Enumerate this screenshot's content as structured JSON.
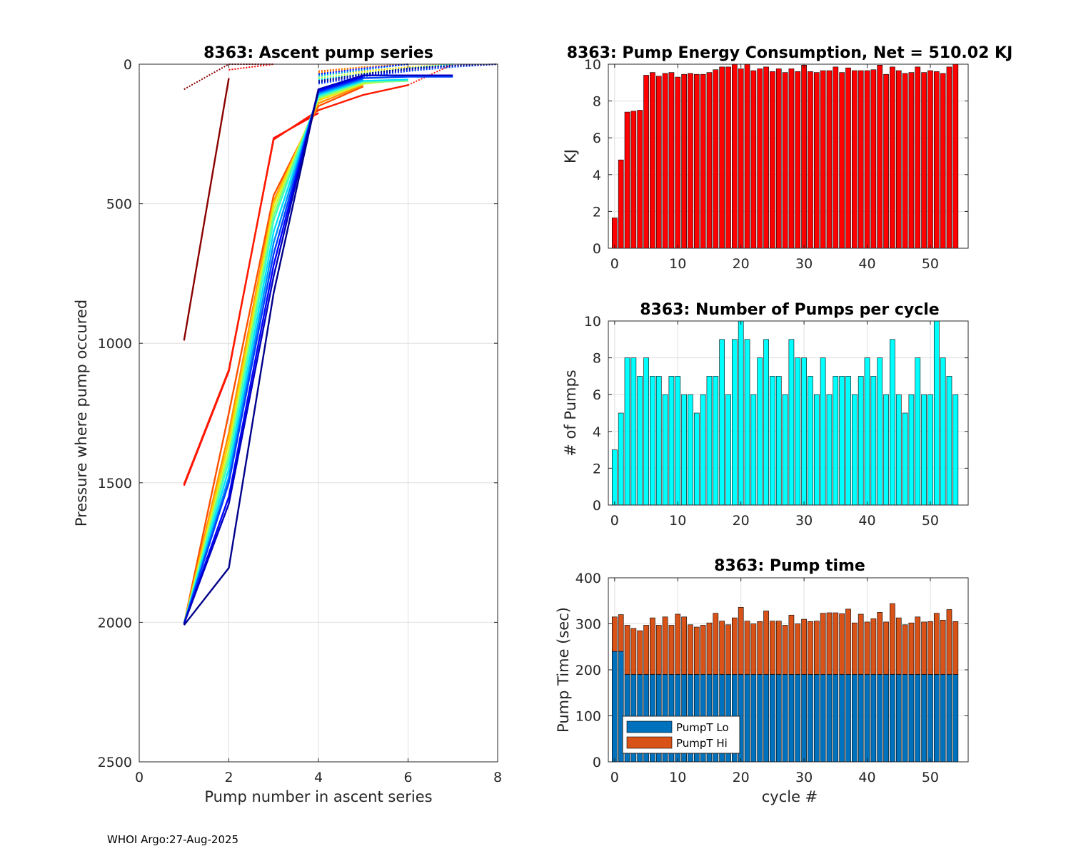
{
  "colors": {
    "energy": "#ff0000",
    "pumps": "#00ffff",
    "pumpT_lo": "#0072bd",
    "pumpT_hi": "#d95319"
  },
  "footer": "WHOI Argo:27-Aug-2025",
  "chart_data": [
    {
      "type": "line",
      "title": "8363: Ascent pump series",
      "xlabel": "Pump number in ascent series",
      "ylabel": "Pressure where pump occured",
      "xlim": [
        0,
        8
      ],
      "ylim": [
        0,
        2500
      ],
      "y_reversed": true,
      "xticks": [
        0,
        2,
        4,
        6,
        8
      ],
      "yticks": [
        0,
        500,
        1000,
        1500,
        2000,
        2500
      ],
      "xtick_labels": [
        "0",
        "2",
        "4",
        "6",
        "8"
      ],
      "ytick_labels": [
        "0",
        "500",
        "1000",
        "1500",
        "2000",
        "2500"
      ],
      "grid": true,
      "note": "one line per cycle, coloured by cycle (red = early, jet colormap, dark blue = late); solid = pumps at depth, dotted = near-surface pumps",
      "series": [
        {
          "cycle": 0,
          "color": "#8b0000",
          "solid": {
            "x": [
              1,
              2
            ],
            "y": [
              990,
              50
            ]
          },
          "dotted": {
            "x": [
              1,
              2,
              3
            ],
            "y": [
              90,
              0,
              0
            ]
          }
        },
        {
          "cycle": 1,
          "color": "#ff0000",
          "solid": {
            "x": [
              1,
              2,
              3,
              4
            ],
            "y": [
              1510,
              1100,
              265,
              175
            ]
          },
          "dotted": {
            "x": [
              2,
              3
            ],
            "y": [
              20,
              0
            ]
          }
        },
        {
          "cycle": 2,
          "color": "#ff1a00",
          "solid": {
            "x": [
              1,
              2,
              3,
              4,
              5,
              6
            ],
            "y": [
              1505,
              1095,
              270,
              165,
              110,
              75
            ]
          },
          "dotted": {
            "x": [
              6,
              7
            ],
            "y": [
              75,
              0
            ]
          }
        },
        {
          "cycle": 3,
          "color": "#ff5000",
          "solid": {
            "x": [
              1,
              2,
              3,
              4,
              5
            ],
            "y": [
              2005,
              1250,
              470,
              150,
              80
            ]
          },
          "dotted": {
            "x": [
              4,
              5,
              6
            ],
            "y": [
              25,
              10,
              0
            ]
          }
        },
        {
          "cycle": 6,
          "color": "#ff9000",
          "solid": {
            "x": [
              1,
              2,
              3,
              4,
              5
            ],
            "y": [
              2005,
              1320,
              490,
              140,
              75
            ]
          },
          "dotted": {
            "x": [
              4,
              5,
              6
            ],
            "y": [
              30,
              10,
              0
            ]
          }
        },
        {
          "cycle": 10,
          "color": "#ffd000",
          "solid": {
            "x": [
              1,
              2,
              3,
              4,
              5
            ],
            "y": [
              2005,
              1350,
              500,
              130,
              70
            ]
          },
          "dotted": {
            "x": [
              4,
              5,
              6,
              7
            ],
            "y": [
              40,
              25,
              10,
              0
            ]
          }
        },
        {
          "cycle": 15,
          "color": "#c8ff30",
          "solid": {
            "x": [
              1,
              2,
              3,
              4,
              5,
              6
            ],
            "y": [
              2005,
              1380,
              520,
              125,
              70,
              55
            ]
          },
          "dotted": {
            "x": [
              4,
              5,
              6,
              7
            ],
            "y": [
              50,
              30,
              15,
              0
            ]
          }
        },
        {
          "cycle": 20,
          "color": "#80ff80",
          "solid": {
            "x": [
              1,
              2,
              3,
              4,
              5,
              6
            ],
            "y": [
              2005,
              1400,
              540,
              120,
              65,
              60
            ]
          },
          "dotted": {
            "x": [
              4,
              5,
              6,
              7
            ],
            "y": [
              60,
              35,
              15,
              0
            ]
          }
        },
        {
          "cycle": 25,
          "color": "#40ffc0",
          "solid": {
            "x": [
              1,
              2,
              3,
              4,
              5
            ],
            "y": [
              2005,
              1420,
              560,
              115,
              60
            ]
          },
          "dotted": {
            "x": [
              4,
              5,
              6
            ],
            "y": [
              45,
              20,
              0
            ]
          }
        },
        {
          "cycle": 30,
          "color": "#00e0ff",
          "solid": {
            "x": [
              1,
              2,
              3,
              4,
              5,
              6
            ],
            "y": [
              2005,
              1450,
              600,
              110,
              60,
              55
            ]
          },
          "dotted": {
            "x": [
              4,
              5,
              6,
              7
            ],
            "y": [
              55,
              35,
              15,
              0
            ]
          }
        },
        {
          "cycle": 35,
          "color": "#0090ff",
          "solid": {
            "x": [
              1,
              2,
              3,
              4,
              5
            ],
            "y": [
              2005,
              1480,
              640,
              105,
              55
            ]
          },
          "dotted": {
            "x": [
              4,
              5,
              6
            ],
            "y": [
              40,
              20,
              0
            ]
          }
        },
        {
          "cycle": 40,
          "color": "#0040ff",
          "solid": {
            "x": [
              1,
              2,
              3,
              4,
              5,
              6,
              7
            ],
            "y": [
              2005,
              1500,
              680,
              100,
              50,
              45,
              45
            ]
          },
          "dotted": {
            "x": [
              4,
              5,
              6,
              7,
              8
            ],
            "y": [
              70,
              45,
              25,
              10,
              0
            ]
          }
        },
        {
          "cycle": 45,
          "color": "#0000ff",
          "solid": {
            "x": [
              1,
              2,
              3,
              4,
              5
            ],
            "y": [
              2005,
              1550,
              720,
              95,
              45
            ]
          },
          "dotted": {
            "x": [
              4,
              5,
              6
            ],
            "y": [
              35,
              15,
              0
            ]
          }
        },
        {
          "cycle": 50,
          "color": "#0000c0",
          "solid": {
            "x": [
              1,
              2,
              3,
              4,
              5,
              6,
              7
            ],
            "y": [
              2005,
              1575,
              760,
              90,
              40,
              40,
              40
            ]
          },
          "dotted": {
            "x": [
              4,
              5,
              6,
              7,
              8
            ],
            "y": [
              65,
              40,
              20,
              5,
              0
            ]
          }
        },
        {
          "cycle": 54,
          "color": "#00008b",
          "solid": {
            "x": [
              1,
              2,
              3,
              4
            ],
            "y": [
              2010,
              1805,
              820,
              90
            ]
          },
          "dotted": {
            "x": [
              4,
              5,
              6,
              7,
              8
            ],
            "y": [
              60,
              35,
              15,
              5,
              0
            ]
          }
        }
      ]
    },
    {
      "type": "bar",
      "title": "8363: Pump Energy Consumption,  Net = 510.02 KJ",
      "xlabel": "",
      "ylabel": "KJ",
      "xlim": [
        -1,
        56
      ],
      "ylim": [
        0,
        10
      ],
      "xticks": [
        0,
        10,
        20,
        30,
        40,
        50
      ],
      "yticks": [
        0,
        2,
        4,
        6,
        8,
        10
      ],
      "xtick_labels": [
        "0",
        "10",
        "20",
        "30",
        "40",
        "50"
      ],
      "ytick_labels": [
        "0",
        "2",
        "4",
        "6",
        "8",
        "10"
      ],
      "grid": true,
      "x": [
        0,
        1,
        2,
        3,
        4,
        5,
        6,
        7,
        8,
        9,
        10,
        11,
        12,
        13,
        14,
        15,
        16,
        17,
        18,
        19,
        20,
        21,
        22,
        23,
        24,
        25,
        26,
        27,
        28,
        29,
        30,
        31,
        32,
        33,
        34,
        35,
        36,
        37,
        38,
        39,
        40,
        41,
        42,
        43,
        44,
        45,
        46,
        47,
        48,
        49,
        50,
        51,
        52,
        53,
        54
      ],
      "values": [
        1.65,
        4.8,
        7.4,
        7.45,
        7.5,
        9.4,
        9.55,
        9.35,
        9.5,
        9.55,
        9.3,
        9.45,
        9.5,
        9.45,
        9.45,
        9.55,
        9.7,
        9.85,
        9.85,
        10.0,
        9.75,
        10.05,
        9.65,
        9.75,
        9.85,
        9.6,
        9.75,
        9.55,
        9.75,
        9.6,
        9.95,
        9.6,
        9.55,
        9.65,
        9.65,
        9.85,
        9.55,
        9.8,
        9.65,
        9.65,
        9.65,
        9.7,
        9.95,
        9.45,
        9.85,
        9.65,
        9.5,
        9.55,
        9.85,
        9.55,
        9.65,
        9.6,
        9.5,
        9.85,
        10.05
      ]
    },
    {
      "type": "bar",
      "title": "8363: Number of Pumps per cycle",
      "xlabel": "",
      "ylabel": "# of Pumps",
      "xlim": [
        -1,
        56
      ],
      "ylim": [
        0,
        10
      ],
      "xticks": [
        0,
        10,
        20,
        30,
        40,
        50
      ],
      "yticks": [
        0,
        2,
        4,
        6,
        8,
        10
      ],
      "xtick_labels": [
        "0",
        "10",
        "20",
        "30",
        "40",
        "50"
      ],
      "ytick_labels": [
        "0",
        "2",
        "4",
        "6",
        "8",
        "10"
      ],
      "grid": true,
      "x": [
        0,
        1,
        2,
        3,
        4,
        5,
        6,
        7,
        8,
        9,
        10,
        11,
        12,
        13,
        14,
        15,
        16,
        17,
        18,
        19,
        20,
        21,
        22,
        23,
        24,
        25,
        26,
        27,
        28,
        29,
        30,
        31,
        32,
        33,
        34,
        35,
        36,
        37,
        38,
        39,
        40,
        41,
        42,
        43,
        44,
        45,
        46,
        47,
        48,
        49,
        50,
        51,
        52,
        53,
        54
      ],
      "values": [
        3,
        5,
        8,
        8,
        7,
        8,
        7,
        7,
        6,
        7,
        7,
        6,
        6,
        5,
        6,
        7,
        7,
        9,
        6,
        9,
        10,
        9,
        6,
        8,
        9,
        7,
        7,
        6,
        9,
        8,
        8,
        7,
        6,
        8,
        6,
        7,
        7,
        7,
        6,
        7,
        8,
        7,
        8,
        6,
        9,
        6,
        5,
        6,
        8,
        6,
        6,
        10,
        8,
        7,
        6
      ]
    },
    {
      "type": "bar",
      "stacked": true,
      "title": "8363: Pump time",
      "xlabel": "cycle #",
      "ylabel": "Pump Time (sec)",
      "xlim": [
        -1,
        56
      ],
      "ylim": [
        0,
        400
      ],
      "xticks": [
        0,
        10,
        20,
        30,
        40,
        50
      ],
      "yticks": [
        0,
        100,
        200,
        300,
        400
      ],
      "xtick_labels": [
        "0",
        "10",
        "20",
        "30",
        "40",
        "50"
      ],
      "ytick_labels": [
        "0",
        "100",
        "200",
        "300",
        "400"
      ],
      "grid": true,
      "legend": {
        "placement": "bottom-left",
        "entries": [
          "PumpT Lo",
          "PumpT Hi"
        ]
      },
      "x": [
        0,
        1,
        2,
        3,
        4,
        5,
        6,
        7,
        8,
        9,
        10,
        11,
        12,
        13,
        14,
        15,
        16,
        17,
        18,
        19,
        20,
        21,
        22,
        23,
        24,
        25,
        26,
        27,
        28,
        29,
        30,
        31,
        32,
        33,
        34,
        35,
        36,
        37,
        38,
        39,
        40,
        41,
        42,
        43,
        44,
        45,
        46,
        47,
        48,
        49,
        50,
        51,
        52,
        53,
        54
      ],
      "series": [
        {
          "name": "PumpT Lo",
          "values": [
            240,
            240,
            190,
            190,
            190,
            190,
            190,
            190,
            190,
            190,
            190,
            190,
            190,
            190,
            190,
            190,
            190,
            190,
            190,
            190,
            190,
            190,
            190,
            190,
            190,
            190,
            190,
            190,
            190,
            190,
            190,
            190,
            190,
            190,
            190,
            190,
            190,
            190,
            190,
            190,
            190,
            190,
            190,
            190,
            190,
            190,
            190,
            190,
            190,
            190,
            190,
            190,
            190,
            190,
            190
          ]
        },
        {
          "name": "PumpT Hi",
          "values": [
            75,
            80,
            107,
            100,
            95,
            107,
            123,
            107,
            125,
            107,
            131,
            125,
            108,
            103,
            107,
            112,
            133,
            116,
            108,
            123,
            146,
            116,
            110,
            115,
            138,
            116,
            116,
            107,
            129,
            110,
            120,
            115,
            116,
            133,
            134,
            134,
            132,
            142,
            112,
            131,
            114,
            121,
            135,
            114,
            154,
            123,
            108,
            112,
            125,
            114,
            115,
            133,
            118,
            141,
            115
          ]
        }
      ]
    }
  ]
}
